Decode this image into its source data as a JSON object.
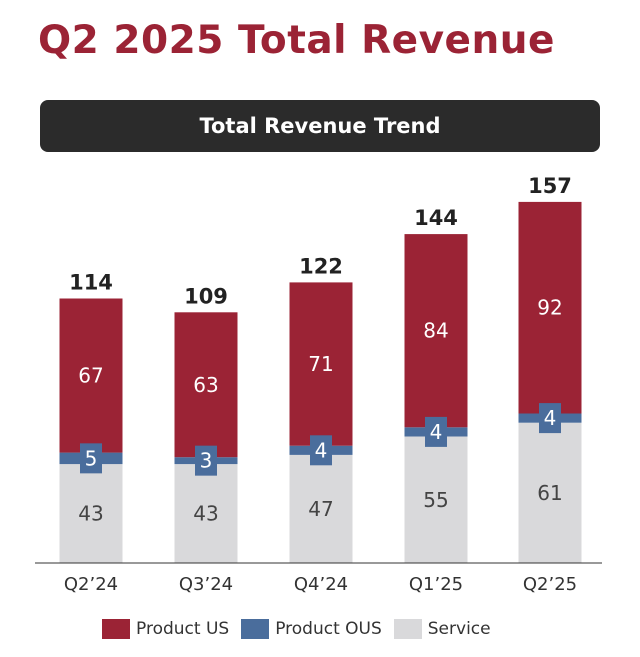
{
  "title": "Q2 2025 Total Revenue",
  "chart_data": {
    "type": "bar",
    "stacked": true,
    "title": "Total Revenue Trend",
    "categories": [
      "Q2'24",
      "Q3'24",
      "Q4'24",
      "Q1'25",
      "Q2'25"
    ],
    "series": [
      {
        "name": "Service",
        "color": "#d9d9db",
        "values": [
          43,
          43,
          47,
          55,
          61
        ]
      },
      {
        "name": "Product OUS",
        "color": "#4a6d9c",
        "values": [
          5,
          3,
          4,
          4,
          4
        ]
      },
      {
        "name": "Product US",
        "color": "#9b2335",
        "values": [
          67,
          63,
          71,
          84,
          92
        ]
      }
    ],
    "totals": [
      "114",
      "109",
      "122",
      "144",
      "157"
    ],
    "legend_placement": "bottom",
    "ylim": [
      0,
      157
    ]
  }
}
